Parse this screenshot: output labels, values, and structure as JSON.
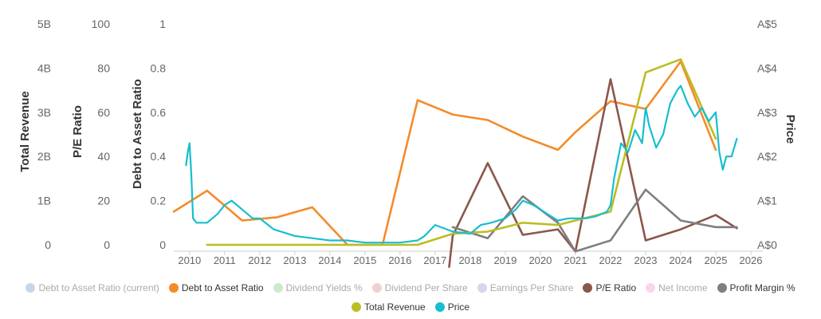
{
  "chart_data": {
    "type": "line",
    "title": "",
    "xlabel": "",
    "x_ticks": [
      "2010",
      "2011",
      "2012",
      "2013",
      "2014",
      "2015",
      "2016",
      "2017",
      "2018",
      "2019",
      "2020",
      "2021",
      "2022",
      "2023",
      "2024",
      "2025",
      "2026"
    ],
    "xlim": [
      2009.55,
      2026.0
    ],
    "axes": [
      {
        "id": "revenue",
        "title": "Total Revenue",
        "ticks": [
          "0",
          "1B",
          "2B",
          "3B",
          "4B",
          "5B"
        ],
        "ylim": [
          0,
          5000000000
        ]
      },
      {
        "id": "pe",
        "title": "P/E Ratio",
        "ticks": [
          "0",
          "20",
          "40",
          "60",
          "80",
          "100"
        ],
        "ylim": [
          0,
          100
        ]
      },
      {
        "id": "debt",
        "title": "Debt to Asset Ratio",
        "ticks": [
          "0",
          "0.2",
          "0.4",
          "0.6",
          "0.8",
          "1"
        ],
        "ylim": [
          0,
          1
        ]
      },
      {
        "id": "price",
        "title": "Price",
        "ticks": [
          "A$0",
          "A$1",
          "A$2",
          "A$3",
          "A$4",
          "A$5"
        ],
        "ylim": [
          0,
          5
        ]
      }
    ],
    "legend": [
      {
        "name": "Debt to Asset Ratio (current)",
        "color": "#c5d8ea",
        "visible": false
      },
      {
        "name": "Debt to Asset Ratio",
        "color": "#f58a2a",
        "visible": true
      },
      {
        "name": "Dividend Yields %",
        "color": "#cde9cb",
        "visible": false
      },
      {
        "name": "Dividend Per Share",
        "color": "#f4cfcf",
        "visible": false
      },
      {
        "name": "Earnings Per Share",
        "color": "#ddd3ec",
        "visible": false
      },
      {
        "name": "P/E Ratio",
        "color": "#8c564b",
        "visible": true
      },
      {
        "name": "Net Income",
        "color": "#f7d7ec",
        "visible": false
      },
      {
        "name": "Profit Margin %",
        "color": "#7f7f7f",
        "visible": true
      },
      {
        "name": "Total Revenue",
        "color": "#bcbd22",
        "visible": true
      },
      {
        "name": "Price",
        "color": "#17becf",
        "visible": true
      }
    ],
    "series": [
      {
        "name": "Debt to Asset Ratio",
        "axis": "debt",
        "color": "#f58a2a",
        "x": [
          2009.55,
          2010.5,
          2011.5,
          2012.5,
          2013.5,
          2014.5,
          2015.5,
          2016.5,
          2017.5,
          2018.5,
          2019.5,
          2020.5,
          2021.0,
          2022.0,
          2023.0,
          2024.0,
          2025.0
        ],
        "values": [
          0.15,
          0.245,
          0.11,
          0.125,
          0.17,
          0.0,
          0.0,
          0.655,
          0.59,
          0.565,
          0.49,
          0.43,
          0.51,
          0.65,
          0.615,
          0.83,
          0.43
        ]
      },
      {
        "name": "P/E Ratio",
        "axis": "pe",
        "color": "#8c564b",
        "x": [
          2017.4,
          2017.5,
          2018.5,
          2019.5,
          2020.5,
          2021.0,
          2022.0,
          2023.0,
          2024.0,
          2025.0,
          2025.6
        ],
        "values": [
          -10,
          4,
          37,
          4.5,
          7,
          -3,
          75,
          2,
          7,
          13.5,
          7.5
        ]
      },
      {
        "name": "Profit Margin %",
        "axis": "pe",
        "color": "#7f7f7f",
        "x": [
          2017.5,
          2018.5,
          2019.5,
          2020.5,
          2021.0,
          2022.0,
          2023.0,
          2024.0,
          2025.0,
          2025.6
        ],
        "values": [
          8,
          3,
          22,
          10,
          -3,
          2,
          25,
          11,
          8,
          8
        ]
      },
      {
        "name": "Total Revenue",
        "axis": "revenue",
        "color": "#bcbd22",
        "x": [
          2010.5,
          2011.5,
          2012.5,
          2013.5,
          2014.5,
          2015.5,
          2016.5,
          2017.5,
          2018.5,
          2019.5,
          2020.5,
          2021.0,
          2022.0,
          2023.0,
          2024.0,
          2025.0
        ],
        "values": [
          0,
          0,
          0,
          0,
          0,
          0,
          0,
          250000000,
          300000000,
          500000000,
          450000000,
          550000000,
          750000000,
          3900000000,
          4200000000,
          2400000000
        ]
      },
      {
        "name": "Price",
        "axis": "price",
        "color": "#17becf",
        "x": [
          2009.9,
          2009.95,
          2010.0,
          2010.05,
          2010.1,
          2010.2,
          2010.5,
          2010.8,
          2011.0,
          2011.2,
          2011.5,
          2011.8,
          2012.0,
          2012.4,
          2012.8,
          2013.0,
          2013.5,
          2014.0,
          2014.5,
          2015.0,
          2015.5,
          2016.0,
          2016.5,
          2016.7,
          2017.0,
          2017.5,
          2018.0,
          2018.3,
          2018.6,
          2019.0,
          2019.3,
          2019.5,
          2019.8,
          2020.0,
          2020.3,
          2020.5,
          2020.8,
          2021.0,
          2021.3,
          2021.6,
          2021.9,
          2022.0,
          2022.1,
          2022.3,
          2022.5,
          2022.7,
          2022.9,
          2023.0,
          2023.1,
          2023.3,
          2023.5,
          2023.7,
          2023.9,
          2024.0,
          2024.2,
          2024.4,
          2024.6,
          2024.8,
          2025.0,
          2025.1,
          2025.2,
          2025.3,
          2025.45,
          2025.6
        ],
        "values": [
          1.8,
          2.1,
          2.3,
          1.6,
          0.6,
          0.5,
          0.5,
          0.7,
          0.9,
          1.0,
          0.8,
          0.6,
          0.6,
          0.35,
          0.25,
          0.2,
          0.15,
          0.1,
          0.1,
          0.05,
          0.05,
          0.05,
          0.1,
          0.2,
          0.45,
          0.3,
          0.25,
          0.45,
          0.5,
          0.6,
          0.8,
          1.0,
          0.9,
          0.8,
          0.65,
          0.55,
          0.6,
          0.6,
          0.6,
          0.65,
          0.75,
          0.9,
          1.5,
          2.3,
          2.1,
          2.6,
          2.3,
          3.1,
          2.7,
          2.2,
          2.5,
          3.2,
          3.5,
          3.6,
          3.2,
          2.9,
          3.1,
          2.8,
          3.0,
          2.1,
          1.7,
          2.0,
          2.0,
          2.4
        ]
      }
    ]
  }
}
